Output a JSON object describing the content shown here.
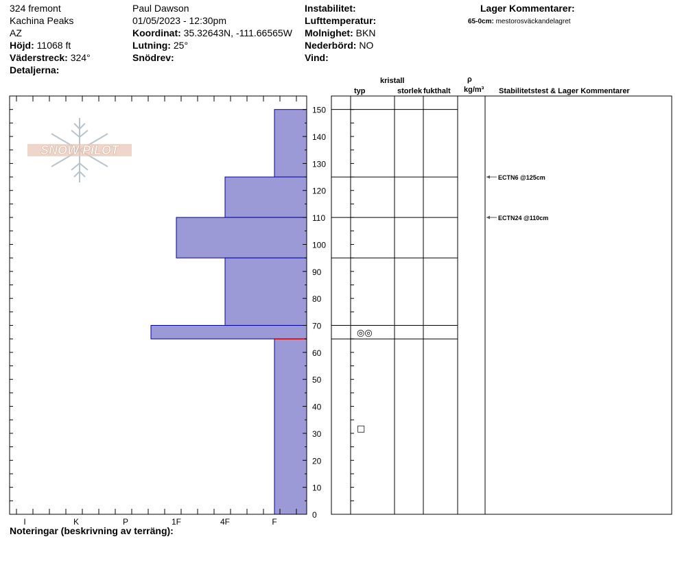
{
  "header": {
    "location": "324 fremont",
    "area": "Kachina Peaks",
    "state": "AZ",
    "elevation_label": "Höjd:",
    "elevation_value": "11068 ft",
    "aspect_label": "Väderstreck:",
    "aspect_value": "324°",
    "details_label": "Detaljerna:",
    "observer": "Paul Dawson",
    "datetime": "01/05/2023 - 12:30pm",
    "coord_label": "Koordinat:",
    "coord_value": "35.32643N, -111.66565W",
    "slope_label": "Lutning:",
    "slope_value": "25°",
    "drift_label": "Snödrev:",
    "instability_label": "Instabilitet:",
    "air_temp_label": "Lufttemperatur:",
    "sky_label": "Molnighet:",
    "sky_value": "BKN",
    "precip_label": "Nederbörd:",
    "precip_value": "NO",
    "wind_label": "Vind:",
    "layer_comments_title": "Lager Kommentarer:",
    "layer_comment_depth": "65-0cm:",
    "layer_comment_text": "mestorosväckandelagret"
  },
  "columns": {
    "crystal": "kristall",
    "type": "typ",
    "size": "storlek",
    "moisture": "fukthalt",
    "rho": "ρ",
    "density_unit": "kg/m³",
    "stability": "Stabilitetstest & Lager Kommentarer"
  },
  "logo_text": "SNOW PILOT",
  "notes_label": "Noteringar (beskrivning av terräng):",
  "chart_data": {
    "type": "bar",
    "title": "",
    "orientation": "horizontal",
    "y_axis": {
      "label": "",
      "unit": "cm",
      "ylim": [
        0,
        155
      ],
      "ticks": [
        0,
        10,
        20,
        30,
        40,
        50,
        60,
        70,
        80,
        90,
        100,
        110,
        120,
        130,
        140,
        150
      ]
    },
    "x_axis": {
      "label": "",
      "categories": [
        "I",
        "K",
        "P",
        "1F",
        "4F",
        "F"
      ],
      "reversed": true
    },
    "hardness_index": {
      "F": 1,
      "4F": 2,
      "1F": 3,
      "P": 4,
      "K": 5,
      "I": 6
    },
    "layers": [
      {
        "top": 150,
        "bottom": 125,
        "hardness": "F"
      },
      {
        "top": 125,
        "bottom": 110,
        "hardness": "4F"
      },
      {
        "top": 110,
        "bottom": 95,
        "hardness": "1F"
      },
      {
        "top": 95,
        "bottom": 70,
        "hardness": "4F"
      },
      {
        "top": 70,
        "bottom": 65,
        "hardness": "1F-P"
      },
      {
        "top": 65,
        "bottom": 0,
        "hardness": "F"
      }
    ],
    "layer_boundaries": [
      150,
      125,
      110,
      95,
      70,
      65
    ],
    "crystal_symbols": [
      {
        "depth": 67.5,
        "symbol": "◎◎",
        "name": "melt-freeze"
      },
      {
        "depth": 32,
        "symbol": "□",
        "name": "faceted"
      }
    ],
    "stability_tests": [
      {
        "depth": 125,
        "label": "ECTN6 @125cm"
      },
      {
        "depth": 110,
        "label": "ECTN24 @110cm"
      }
    ],
    "colors": {
      "fill": "#9b9ad6",
      "edge": "#0000a0",
      "marker": "#cc0000"
    }
  }
}
